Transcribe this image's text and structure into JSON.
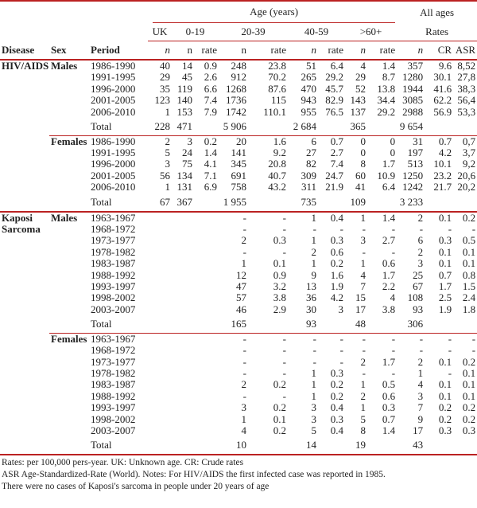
{
  "header": {
    "age_group": "Age (years)",
    "all_ages": "All ages",
    "uk": "UK",
    "age_bands": [
      "0-19",
      "20-39",
      "40-59",
      ">60+"
    ],
    "rates": "Rates",
    "disease": "Disease",
    "sex": "Sex",
    "period": "Period",
    "subcols": [
      "n",
      "n",
      "rate",
      "n",
      "rate",
      "n",
      "rate",
      "n",
      "rate",
      "n",
      "CR",
      "ASR"
    ],
    "italic_subcols": [
      0,
      5,
      7,
      9
    ]
  },
  "sections": [
    {
      "disease": "HIV/AIDS",
      "groups": [
        {
          "sex": "Males",
          "rows": [
            {
              "period": "1986-1990",
              "values": [
                "40",
                "14",
                "0.9",
                "248",
                "23.8",
                "51",
                "6.4",
                "4",
                "1.4",
                "357",
                "9.6",
                "8,52"
              ]
            },
            {
              "period": "1991-1995",
              "values": [
                "29",
                "45",
                "2.6",
                "912",
                "70.2",
                "265",
                "29.2",
                "29",
                "8.7",
                "1280",
                "30.1",
                "27,8"
              ]
            },
            {
              "period": "1996-2000",
              "values": [
                "35",
                "119",
                "6.6",
                "1268",
                "87.6",
                "470",
                "45.7",
                "52",
                "13.8",
                "1944",
                "41.6",
                "38,3"
              ]
            },
            {
              "period": "2001-2005",
              "values": [
                "123",
                "140",
                "7.4",
                "1736",
                "115",
                "943",
                "82.9",
                "143",
                "34.4",
                "3085",
                "62.2",
                "56,4"
              ]
            },
            {
              "period": "2006-2010",
              "values": [
                "1",
                "153",
                "7.9",
                "1742",
                "110.1",
                "955",
                "76.5",
                "137",
                "29.2",
                "2988",
                "56.9",
                "53,3"
              ]
            }
          ],
          "total_label": "Total",
          "total": [
            "228",
            "471",
            "",
            "5 906",
            "",
            "2 684",
            "",
            "365",
            "",
            "9 654",
            "",
            ""
          ]
        },
        {
          "sex": "Females",
          "rows": [
            {
              "period": "1986-1990",
              "values": [
                "2",
                "3",
                "0.2",
                "20",
                "1.6",
                "6",
                "0.7",
                "0",
                "0",
                "31",
                "0.7",
                "0,7"
              ]
            },
            {
              "period": "1991-1995",
              "values": [
                "5",
                "24",
                "1.4",
                "141",
                "9.2",
                "27",
                "2.7",
                "0",
                "0",
                "197",
                "4.2",
                "3,7"
              ]
            },
            {
              "period": "1996-2000",
              "values": [
                "3",
                "75",
                "4.1",
                "345",
                "20.8",
                "82",
                "7.4",
                "8",
                "1.7",
                "513",
                "10.1",
                "9,2"
              ]
            },
            {
              "period": "2001-2005",
              "values": [
                "56",
                "134",
                "7.1",
                "691",
                "40.7",
                "309",
                "24.7",
                "60",
                "10.9",
                "1250",
                "23.2",
                "20,6"
              ]
            },
            {
              "period": "2006-2010",
              "values": [
                "1",
                "131",
                "6.9",
                "758",
                "43.2",
                "311",
                "21.9",
                "41",
                "6.4",
                "1242",
                "21.7",
                "20,2"
              ]
            }
          ],
          "total_label": "Total",
          "total": [
            "67",
            "367",
            "",
            "1 955",
            "",
            "735",
            "",
            "109",
            "",
            "3 233",
            "",
            ""
          ]
        }
      ]
    },
    {
      "disease": "Kaposi Sarcoma",
      "groups": [
        {
          "sex": "Males",
          "rows": [
            {
              "period": "1963-1967",
              "values": [
                "",
                "",
                "",
                "-",
                "-",
                "1",
                "0.4",
                "1",
                "1.4",
                "2",
                "0.1",
                "0.2"
              ]
            },
            {
              "period": "1968-1972",
              "values": [
                "",
                "",
                "",
                "-",
                "-",
                "-",
                "-",
                "-",
                "-",
                "-",
                "-",
                "-"
              ]
            },
            {
              "period": "1973-1977",
              "values": [
                "",
                "",
                "",
                "2",
                "0.3",
                "1",
                "0.3",
                "3",
                "2.7",
                "6",
                "0.3",
                "0.5"
              ]
            },
            {
              "period": "1978-1982",
              "values": [
                "",
                "",
                "",
                "-",
                "-",
                "2",
                "0.6",
                "-",
                "-",
                "2",
                "0.1",
                "0.1"
              ]
            },
            {
              "period": "1983-1987",
              "values": [
                "",
                "",
                "",
                "1",
                "0.1",
                "1",
                "0.2",
                "1",
                "0.6",
                "3",
                "0.1",
                "0.1"
              ]
            },
            {
              "period": "1988-1992",
              "values": [
                "",
                "",
                "",
                "12",
                "0.9",
                "9",
                "1.6",
                "4",
                "1.7",
                "25",
                "0.7",
                "0.8"
              ]
            },
            {
              "period": "1993-1997",
              "values": [
                "",
                "",
                "",
                "47",
                "3.2",
                "13",
                "1.9",
                "7",
                "2.2",
                "67",
                "1.7",
                "1.5"
              ]
            },
            {
              "period": "1998-2002",
              "values": [
                "",
                "",
                "",
                "57",
                "3.8",
                "36",
                "4.2",
                "15",
                "4",
                "108",
                "2.5",
                "2.4"
              ]
            },
            {
              "period": "2003-2007",
              "values": [
                "",
                "",
                "",
                "46",
                "2.9",
                "30",
                "3",
                "17",
                "3.8",
                "93",
                "1.9",
                "1.8"
              ]
            }
          ],
          "total_label": "Total",
          "total": [
            "",
            "",
            "",
            "165",
            "",
            "93",
            "",
            "48",
            "",
            "306",
            "",
            ""
          ]
        },
        {
          "sex": "Females",
          "rows": [
            {
              "period": "1963-1967",
              "values": [
                "",
                "",
                "",
                "-",
                "-",
                "-",
                "-",
                "-",
                "-",
                "-",
                "-",
                "-"
              ]
            },
            {
              "period": "1968-1972",
              "values": [
                "",
                "",
                "",
                "-",
                "-",
                "-",
                "-",
                "-",
                "-",
                "-",
                "-",
                "-"
              ]
            },
            {
              "period": "1973-1977",
              "values": [
                "",
                "",
                "",
                "-",
                "-",
                "-",
                "-",
                "2",
                "1.7",
                "2",
                "0.1",
                "0.2"
              ]
            },
            {
              "period": "1978-1982",
              "values": [
                "",
                "",
                "",
                "-",
                "-",
                "1",
                "0.3",
                "-",
                "-",
                "1",
                "-",
                "0.1"
              ]
            },
            {
              "period": "1983-1987",
              "values": [
                "",
                "",
                "",
                "2",
                "0.2",
                "1",
                "0.2",
                "1",
                "0.5",
                "4",
                "0.1",
                "0.1"
              ]
            },
            {
              "period": "1988-1992",
              "values": [
                "",
                "",
                "",
                "-",
                "-",
                "1",
                "0.2",
                "2",
                "0.6",
                "3",
                "0.1",
                "0.1"
              ]
            },
            {
              "period": "1993-1997",
              "values": [
                "",
                "",
                "",
                "3",
                "0.2",
                "3",
                "0.4",
                "1",
                "0.3",
                "7",
                "0.2",
                "0.2"
              ]
            },
            {
              "period": "1998-2002",
              "values": [
                "",
                "",
                "",
                "1",
                "0.1",
                "3",
                "0.3",
                "5",
                "0.7",
                "9",
                "0.2",
                "0.2"
              ]
            },
            {
              "period": "2003-2007",
              "values": [
                "",
                "",
                "",
                "4",
                "0.2",
                "5",
                "0.4",
                "8",
                "1.4",
                "17",
                "0.3",
                "0.3"
              ]
            }
          ],
          "total_label": "Total",
          "total": [
            "",
            "",
            "",
            "10",
            "",
            "14",
            "",
            "19",
            "",
            "43",
            "",
            ""
          ]
        }
      ]
    }
  ],
  "footnotes": [
    "Rates:  per 100,000 pers-year. UK: Unknown age.  CR:  Crude rates",
    "ASR  Age-Standardized-Rate (World). Notes:  For HIV/AIDS the first infected case was reported in 1985.",
    "There were no cases of Kaposi's sarcoma in people under 20 years  of age"
  ]
}
